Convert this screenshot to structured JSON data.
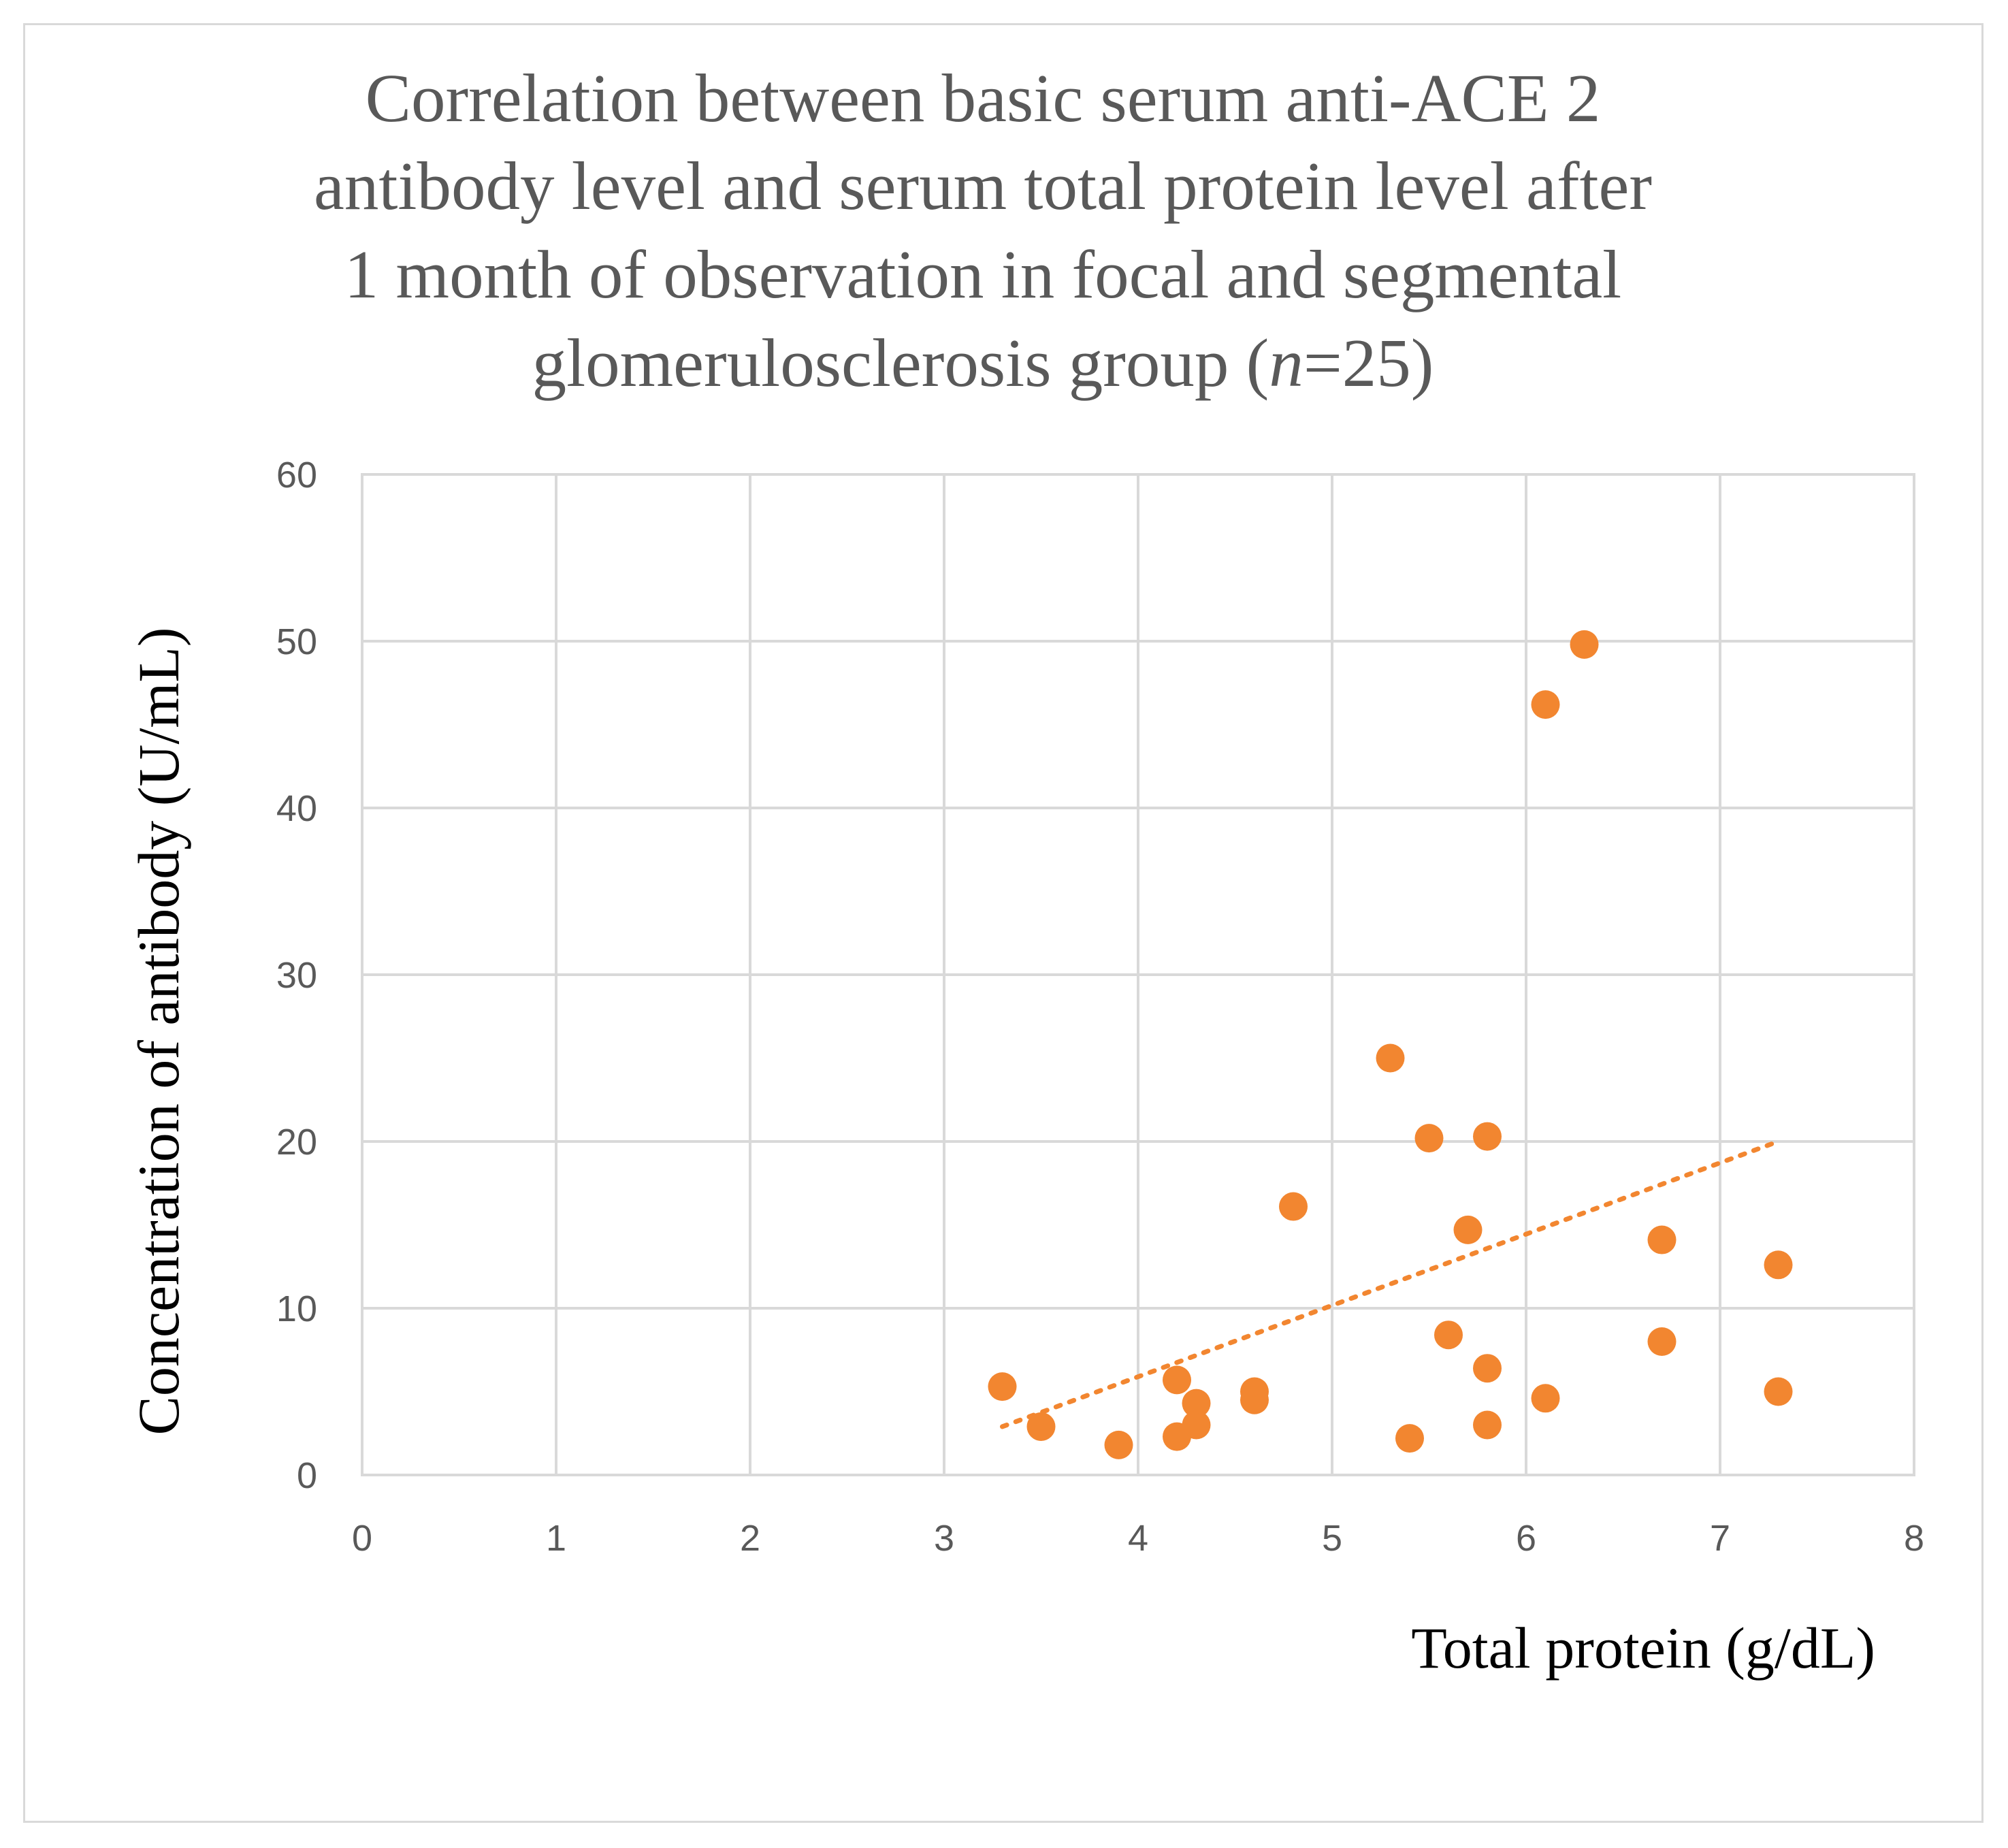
{
  "chart_data": {
    "type": "scatter",
    "title_lines": [
      "Correlation between basic serum anti-ACE 2",
      "antibody level and serum total protein level after",
      "1  month of observation in focal and segmental",
      "glomerulosclerosis group ("
    ],
    "title_n_italic": "n",
    "title_n_suffix": "=25)",
    "xlabel": "Total protein (g/dL)",
    "ylabel": "Concentration of antibody (U/mL)",
    "xlim": [
      0,
      8
    ],
    "ylim": [
      0,
      60
    ],
    "xticks": [
      "0",
      "1",
      "2",
      "3",
      "4",
      "5",
      "6",
      "7",
      "8"
    ],
    "yticks": [
      "0",
      "10",
      "20",
      "30",
      "40",
      "50",
      "60"
    ],
    "grid": true,
    "marker_color": "#f28630",
    "trendline": {
      "style": "dotted",
      "type": "linear",
      "x": [
        3.3,
        7.3
      ],
      "y": [
        2.9,
        20.0
      ]
    },
    "series": [
      {
        "name": "Anti-ACE 2 antibody",
        "points": [
          [
            3.3,
            5.3
          ],
          [
            3.5,
            2.9
          ],
          [
            3.9,
            1.8
          ],
          [
            4.2,
            5.7
          ],
          [
            4.2,
            2.3
          ],
          [
            4.3,
            4.3
          ],
          [
            4.3,
            3.0
          ],
          [
            4.6,
            5.0
          ],
          [
            4.6,
            4.5
          ],
          [
            4.8,
            16.1
          ],
          [
            5.3,
            25.0
          ],
          [
            5.4,
            2.2
          ],
          [
            5.5,
            20.2
          ],
          [
            5.6,
            8.4
          ],
          [
            5.7,
            14.7
          ],
          [
            5.8,
            20.3
          ],
          [
            5.8,
            6.4
          ],
          [
            5.8,
            3.0
          ],
          [
            6.1,
            46.2
          ],
          [
            6.1,
            4.6
          ],
          [
            6.3,
            49.8
          ],
          [
            6.7,
            14.1
          ],
          [
            6.7,
            8.0
          ],
          [
            7.3,
            12.6
          ],
          [
            7.3,
            5.0
          ]
        ]
      }
    ]
  }
}
